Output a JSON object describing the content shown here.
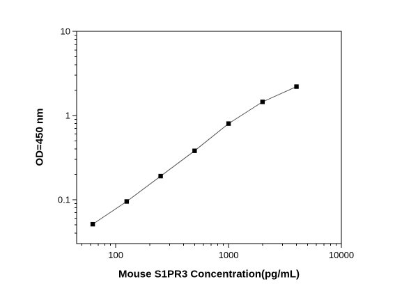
{
  "figure": {
    "background": "#ffffff",
    "axis_color": "#000000"
  },
  "chart_data": {
    "type": "line",
    "title": "",
    "xlabel": "Mouse S1PR3 Concentration(pg/mL)",
    "ylabel": "OD=450 nm",
    "xscale": "log",
    "yscale": "log",
    "xlim": [
      45,
      10000
    ],
    "ylim": [
      0.03,
      10
    ],
    "x_major_ticks": [
      100,
      1000,
      10000
    ],
    "x_major_tick_labels": [
      "100",
      "1000",
      "10000"
    ],
    "y_major_ticks": [
      0.1,
      1,
      10
    ],
    "y_major_tick_labels": [
      "0.1",
      "1",
      "10"
    ],
    "grid": false,
    "legend_position": "none",
    "series": [
      {
        "name": "standard-curve",
        "x": [
          62.5,
          125,
          250,
          500,
          1000,
          2000,
          4000
        ],
        "y": [
          0.051,
          0.095,
          0.19,
          0.38,
          0.8,
          1.45,
          2.2
        ],
        "marker": "filled-square",
        "marker_color": "#000000",
        "line_color": "#4d4d4d"
      }
    ]
  }
}
